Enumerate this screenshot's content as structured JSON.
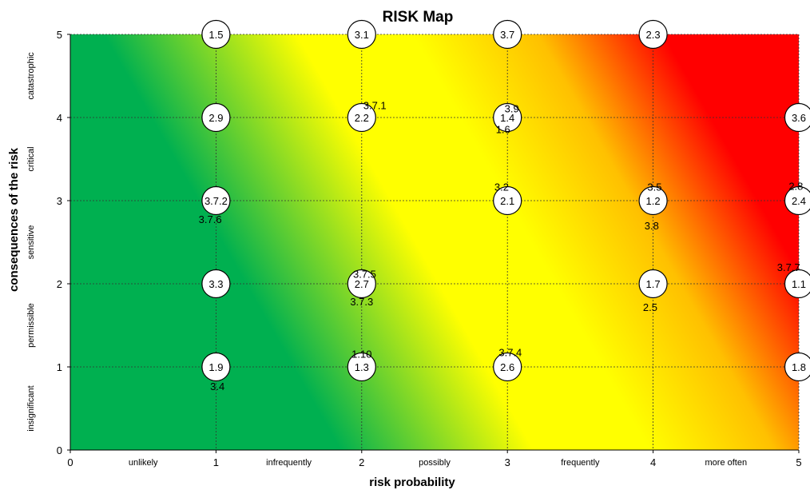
{
  "chart_data": {
    "type": "scatter",
    "title": "RISK Map",
    "xlabel": "risk probability",
    "ylabel": "consequences of the risk",
    "xlim": [
      0,
      5
    ],
    "ylim": [
      0,
      5
    ],
    "x_ticks": [
      "0",
      "1",
      "2",
      "3",
      "4",
      "5"
    ],
    "y_ticks": [
      "0",
      "1",
      "2",
      "3",
      "4",
      "5"
    ],
    "x_categories": [
      "unlikely",
      "infrequently",
      "possibly",
      "frequently",
      "more often"
    ],
    "y_categories": [
      "insignificant",
      "permissible",
      "sensitive",
      "critical",
      "catastrophic"
    ],
    "grid": true,
    "background_gradient": {
      "direction": "bottom-left to top-right",
      "colors": [
        "#00b050",
        "#ffff00",
        "#ffc000",
        "#ff0000"
      ]
    },
    "points": [
      {
        "x": 1,
        "y": 5,
        "label": "1.5"
      },
      {
        "x": 2,
        "y": 5,
        "label": "3.1"
      },
      {
        "x": 3,
        "y": 5,
        "label": "3.7"
      },
      {
        "x": 4,
        "y": 5,
        "label": "2.3"
      },
      {
        "x": 1,
        "y": 4,
        "label": "2.9"
      },
      {
        "x": 2,
        "y": 4,
        "label": "2.2"
      },
      {
        "x": 3,
        "y": 4,
        "label": "1.4"
      },
      {
        "x": 5,
        "y": 4,
        "label": "3.6"
      },
      {
        "x": 1,
        "y": 3,
        "label": "3.7.2"
      },
      {
        "x": 3,
        "y": 3,
        "label": "2.1"
      },
      {
        "x": 4,
        "y": 3,
        "label": "1.2"
      },
      {
        "x": 5,
        "y": 3,
        "label": "2.4"
      },
      {
        "x": 1,
        "y": 2,
        "label": "3.3"
      },
      {
        "x": 2,
        "y": 2,
        "label": "2.7"
      },
      {
        "x": 4,
        "y": 2,
        "label": "1.7"
      },
      {
        "x": 5,
        "y": 2,
        "label": "1.1"
      },
      {
        "x": 1,
        "y": 1,
        "label": "1.9"
      },
      {
        "x": 2,
        "y": 1,
        "label": "1.3"
      },
      {
        "x": 3,
        "y": 1,
        "label": "2.6"
      },
      {
        "x": 5,
        "y": 1,
        "label": "1.8"
      }
    ],
    "annotations": [
      {
        "x": 2.09,
        "y": 4.15,
        "text": "3.7.1"
      },
      {
        "x": 3.03,
        "y": 4.11,
        "text": "3.9"
      },
      {
        "x": 2.97,
        "y": 3.86,
        "text": "1.6"
      },
      {
        "x": 0.96,
        "y": 2.78,
        "text": "3.7.6"
      },
      {
        "x": 2.96,
        "y": 3.17,
        "text": "3.2"
      },
      {
        "x": 4.01,
        "y": 3.17,
        "text": "3.5"
      },
      {
        "x": 3.99,
        "y": 2.7,
        "text": "3.8"
      },
      {
        "x": 4.98,
        "y": 3.18,
        "text": "2.8"
      },
      {
        "x": 2.02,
        "y": 2.12,
        "text": "3.7.5"
      },
      {
        "x": 2.0,
        "y": 1.79,
        "text": "3.7.3"
      },
      {
        "x": 4.93,
        "y": 2.2,
        "text": "3.7.7"
      },
      {
        "x": 3.98,
        "y": 1.72,
        "text": "2.5"
      },
      {
        "x": 2.0,
        "y": 1.16,
        "text": "1.10"
      },
      {
        "x": 3.02,
        "y": 1.18,
        "text": "3.7.4"
      },
      {
        "x": 1.01,
        "y": 0.77,
        "text": "3.4"
      }
    ]
  }
}
